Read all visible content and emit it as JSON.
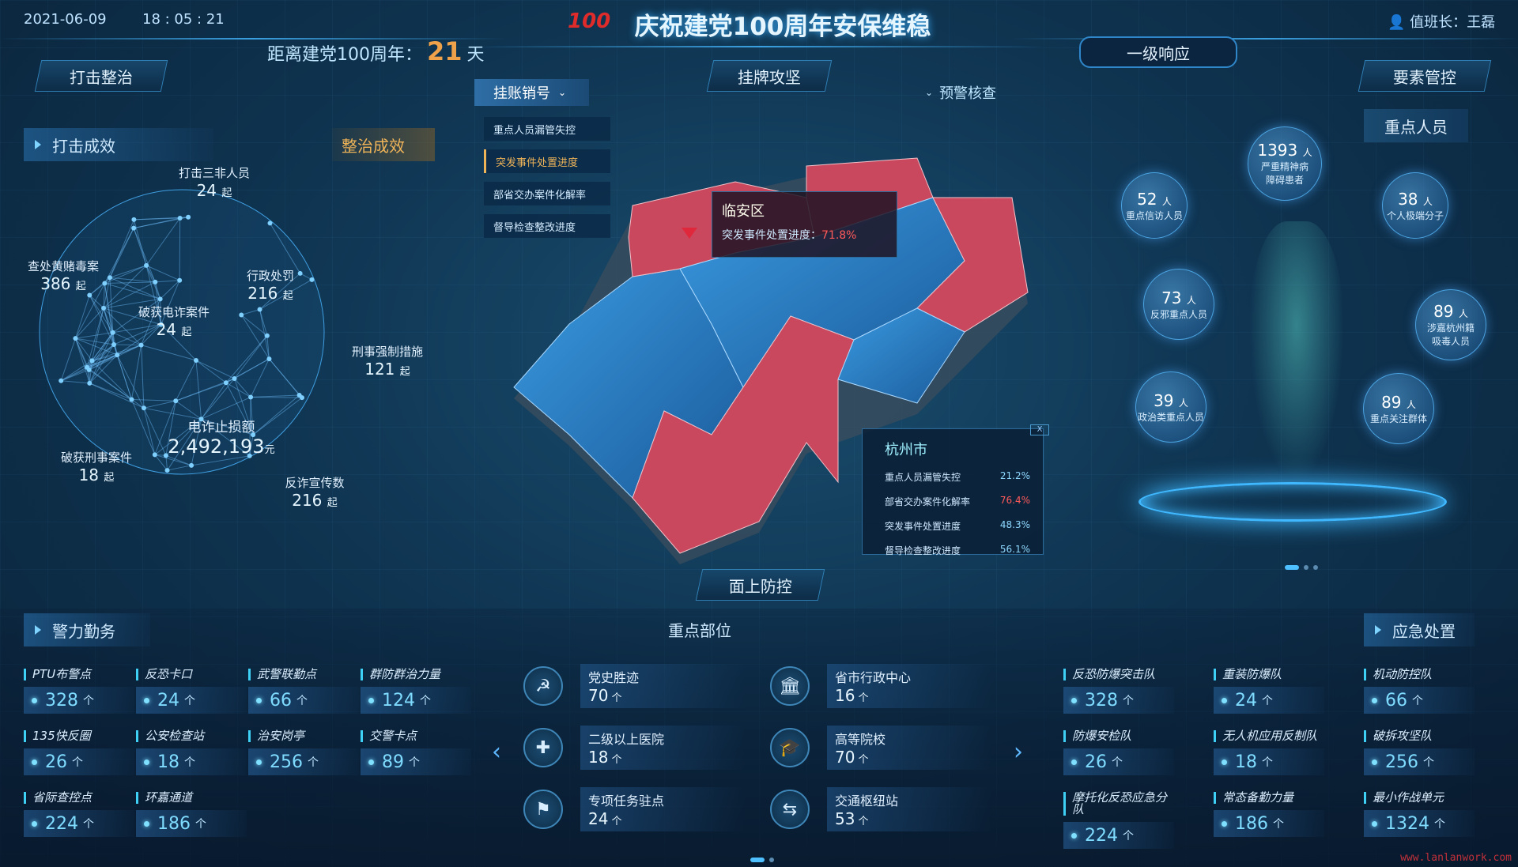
{
  "header": {
    "date": "2021-06-09",
    "time": "18 : 05 : 21",
    "title": "庆祝建党100周年安保维稳",
    "countdown_label": "距离建党100周年：",
    "countdown_days": "21",
    "countdown_unit": "天",
    "response_level": "一级响应",
    "user_label": "值班长：王磊",
    "accent": "#f0a24a"
  },
  "tabs": {
    "left": "打击整治",
    "center": "挂牌攻坚",
    "right": "要素管控",
    "bottom": "面上防控"
  },
  "left_panel": {
    "tab_active": "打击成效",
    "tab_other": "整治成效",
    "items": [
      {
        "label": "打击三非人员",
        "value": "24",
        "unit": "起"
      },
      {
        "label": "查处黄赌毒案",
        "value": "386",
        "unit": "起"
      },
      {
        "label": "行政处罚",
        "value": "216",
        "unit": "起"
      },
      {
        "label": "破获电诈案件",
        "value": "24",
        "unit": "起"
      },
      {
        "label": "刑事强制措施",
        "value": "121",
        "unit": "起"
      },
      {
        "label": "电诈止损额",
        "value": "2,492,193",
        "unit": "元"
      },
      {
        "label": "破获刑事案件",
        "value": "18",
        "unit": "起"
      },
      {
        "label": "反诈宣传数",
        "value": "216",
        "unit": "起"
      }
    ]
  },
  "map_panel": {
    "dropdown_left": "挂账销号",
    "dropdown_right": "预警核查",
    "menu": [
      "重点人员漏管失控",
      "突发事件处置进度",
      "部省交办案件化解率",
      "督导检查整改进度"
    ],
    "menu_active": 1,
    "tooltip": {
      "title": "临安区",
      "label": "突发事件处置进度：",
      "value": "71.8%"
    },
    "city_card": {
      "title": "杭州市",
      "close": "X",
      "rows": [
        {
          "label": "重点人员漏管失控",
          "value": "21.2%",
          "alert": false
        },
        {
          "label": "部省交办案件化解率",
          "value": "76.4%",
          "alert": true
        },
        {
          "label": "突发事件处置进度",
          "value": "48.3%",
          "alert": false
        },
        {
          "label": "督导检查整改进度",
          "value": "56.1%",
          "alert": false
        }
      ]
    },
    "colors": {
      "red": "#c9485e",
      "blue": "#2a7fc8",
      "alert": "#ff5a5a"
    }
  },
  "right_panel": {
    "tag": "重点人员",
    "bubbles": [
      {
        "value": "1393",
        "unit": "人",
        "label": "严重精神病障碍患者"
      },
      {
        "value": "52",
        "unit": "人",
        "label": "重点信访人员"
      },
      {
        "value": "38",
        "unit": "人",
        "label": "个人极端分子"
      },
      {
        "value": "73",
        "unit": "人",
        "label": "反邪重点人员"
      },
      {
        "value": "89",
        "unit": "人",
        "label": "涉嘉杭州籍吸毒人员"
      },
      {
        "value": "39",
        "unit": "人",
        "label": "政治类重点人员"
      },
      {
        "value": "89",
        "unit": "人",
        "label": "重点关注群体"
      }
    ]
  },
  "police": {
    "title": "警力勤务",
    "items": [
      {
        "label": "PTU布警点",
        "value": "328",
        "unit": "个"
      },
      {
        "label": "反恐卡口",
        "value": "24",
        "unit": "个"
      },
      {
        "label": "武警联勤点",
        "value": "66",
        "unit": "个"
      },
      {
        "label": "群防群治力量",
        "value": "124",
        "unit": "个"
      },
      {
        "label": "135快反圈",
        "value": "26",
        "unit": "个"
      },
      {
        "label": "公安检查站",
        "value": "18",
        "unit": "个"
      },
      {
        "label": "治安岗亭",
        "value": "256",
        "unit": "个"
      },
      {
        "label": "交警卡点",
        "value": "89",
        "unit": "个"
      },
      {
        "label": "省际查控点",
        "value": "224",
        "unit": "个"
      },
      {
        "label": "环嘉通道",
        "value": "186",
        "unit": "个"
      }
    ]
  },
  "key_sites": {
    "title": "重点部位",
    "items": [
      {
        "icon": "party-emblem-icon",
        "glyph": "☭",
        "label": "党史胜迹",
        "value": "70",
        "unit": "个"
      },
      {
        "icon": "government-icon",
        "glyph": "🏛",
        "label": "省市行政中心",
        "value": "16",
        "unit": "个"
      },
      {
        "icon": "hospital-icon",
        "glyph": "✚",
        "label": "二级以上医院",
        "value": "18",
        "unit": "个"
      },
      {
        "icon": "graduation-cap-icon",
        "glyph": "🎓",
        "label": "高等院校",
        "value": "70",
        "unit": "个"
      },
      {
        "icon": "flag-icon",
        "glyph": "⚑",
        "label": "专项任务驻点",
        "value": "24",
        "unit": "个"
      },
      {
        "icon": "transport-hub-icon",
        "glyph": "⇆",
        "label": "交通枢纽站",
        "value": "53",
        "unit": "个"
      }
    ]
  },
  "emergency": {
    "title": "应急处置",
    "items": [
      {
        "label": "反恐防爆突击队",
        "value": "328",
        "unit": "个"
      },
      {
        "label": "重装防爆队",
        "value": "24",
        "unit": "个"
      },
      {
        "label": "机动防控队",
        "value": "66",
        "unit": "个"
      },
      {
        "label": "防爆安检队",
        "value": "26",
        "unit": "个"
      },
      {
        "label": "无人机应用反制队",
        "value": "18",
        "unit": "个"
      },
      {
        "label": "破拆攻坚队",
        "value": "256",
        "unit": "个"
      },
      {
        "label": "摩托化反恐应急分队",
        "value": "224",
        "unit": "个"
      },
      {
        "label": "常态备勤力量",
        "value": "186",
        "unit": "个"
      },
      {
        "label": "最小作战单元",
        "value": "1324",
        "unit": "个"
      }
    ]
  },
  "watermark": "www.lanlanwork.com"
}
